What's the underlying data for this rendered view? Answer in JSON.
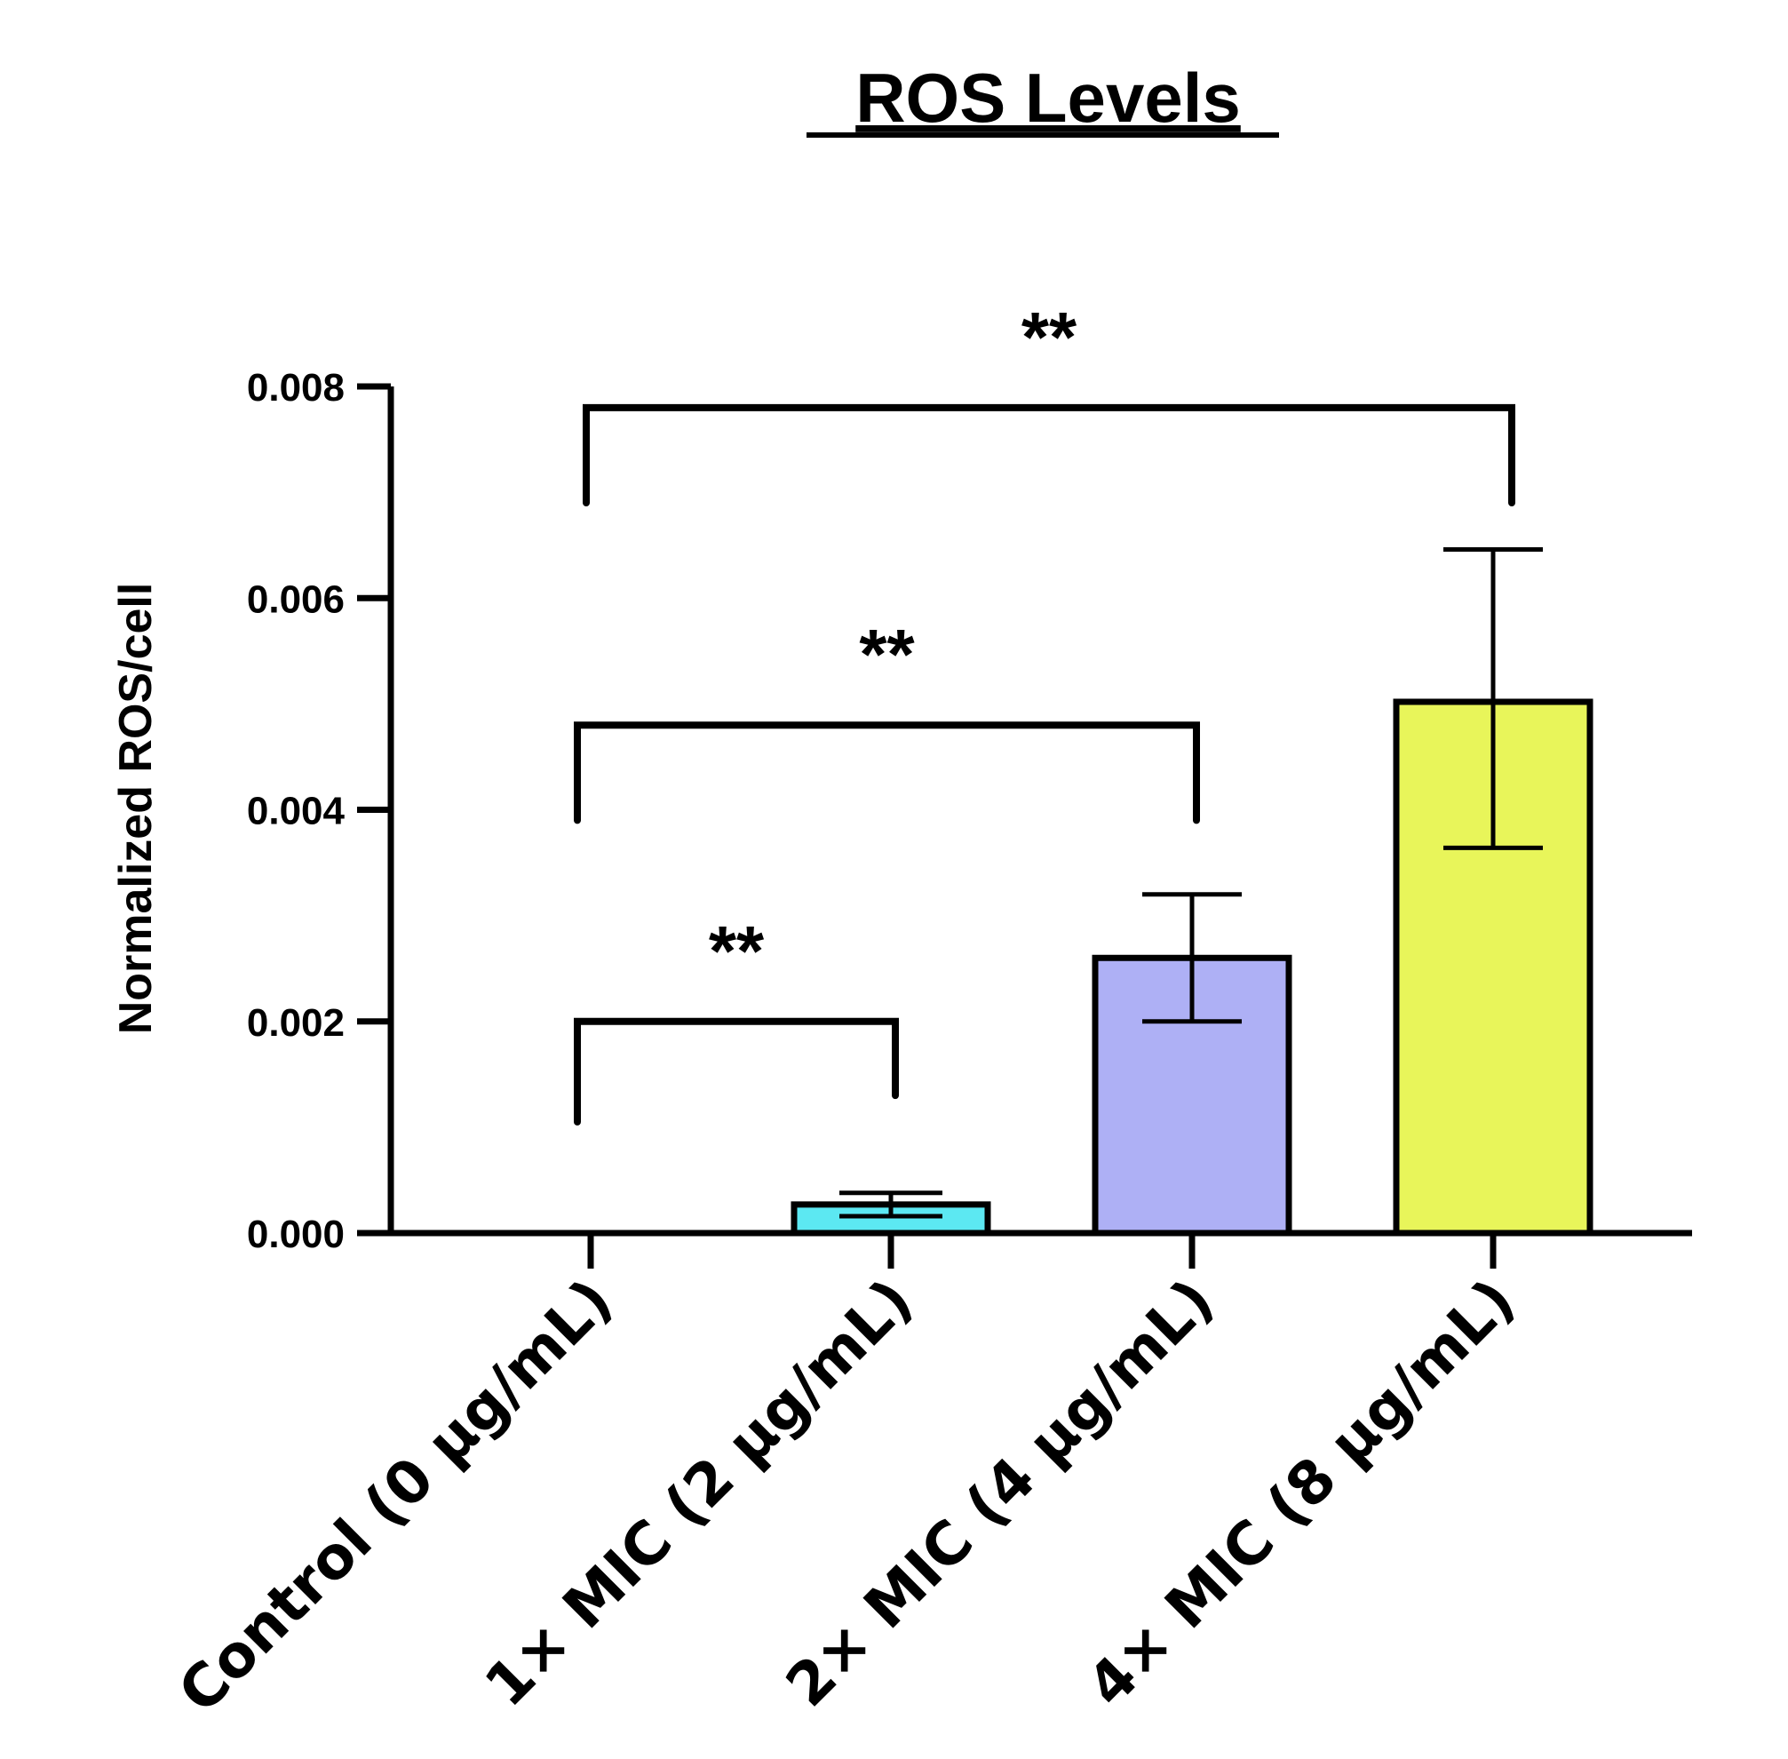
{
  "chart_data": {
    "type": "bar",
    "title": "ROS Levels",
    "ylabel": "Normalized ROS/cell",
    "xlabel": "",
    "categories": [
      "Control (0 µg/mL)",
      "1× MIC (2 µg/mL)",
      "2× MIC (4 µg/mL)",
      "4× MIC (8 µg/mL)"
    ],
    "values": [
      0.0,
      0.00027,
      0.0026,
      0.00502
    ],
    "error_low": [
      0.0,
      0.00016,
      0.002,
      0.00364
    ],
    "error_high": [
      0.0,
      0.00038,
      0.0032,
      0.00646
    ],
    "colors": [
      "#ffffff",
      "#5ce8f2",
      "#aeb0f5",
      "#e8f55a"
    ],
    "ylim": [
      0,
      0.008
    ],
    "yticks": [
      "0.000",
      "0.002",
      "0.004",
      "0.006",
      "0.008"
    ],
    "yticks_values": [
      0,
      0.002,
      0.004,
      0.006,
      0.008
    ],
    "significance": [
      {
        "from": 0,
        "to": 1,
        "label": "**",
        "height": 0.002,
        "left_drop": 0.00105,
        "right_drop": 0.0013
      },
      {
        "from": 0,
        "to": 2,
        "label": "**",
        "height": 0.0048,
        "left_drop": 0.0039,
        "right_drop": 0.0039
      },
      {
        "from": 0,
        "to": 3,
        "label": "**",
        "height": 0.0078,
        "left_drop": 0.0069,
        "right_drop": 0.0069
      }
    ]
  }
}
